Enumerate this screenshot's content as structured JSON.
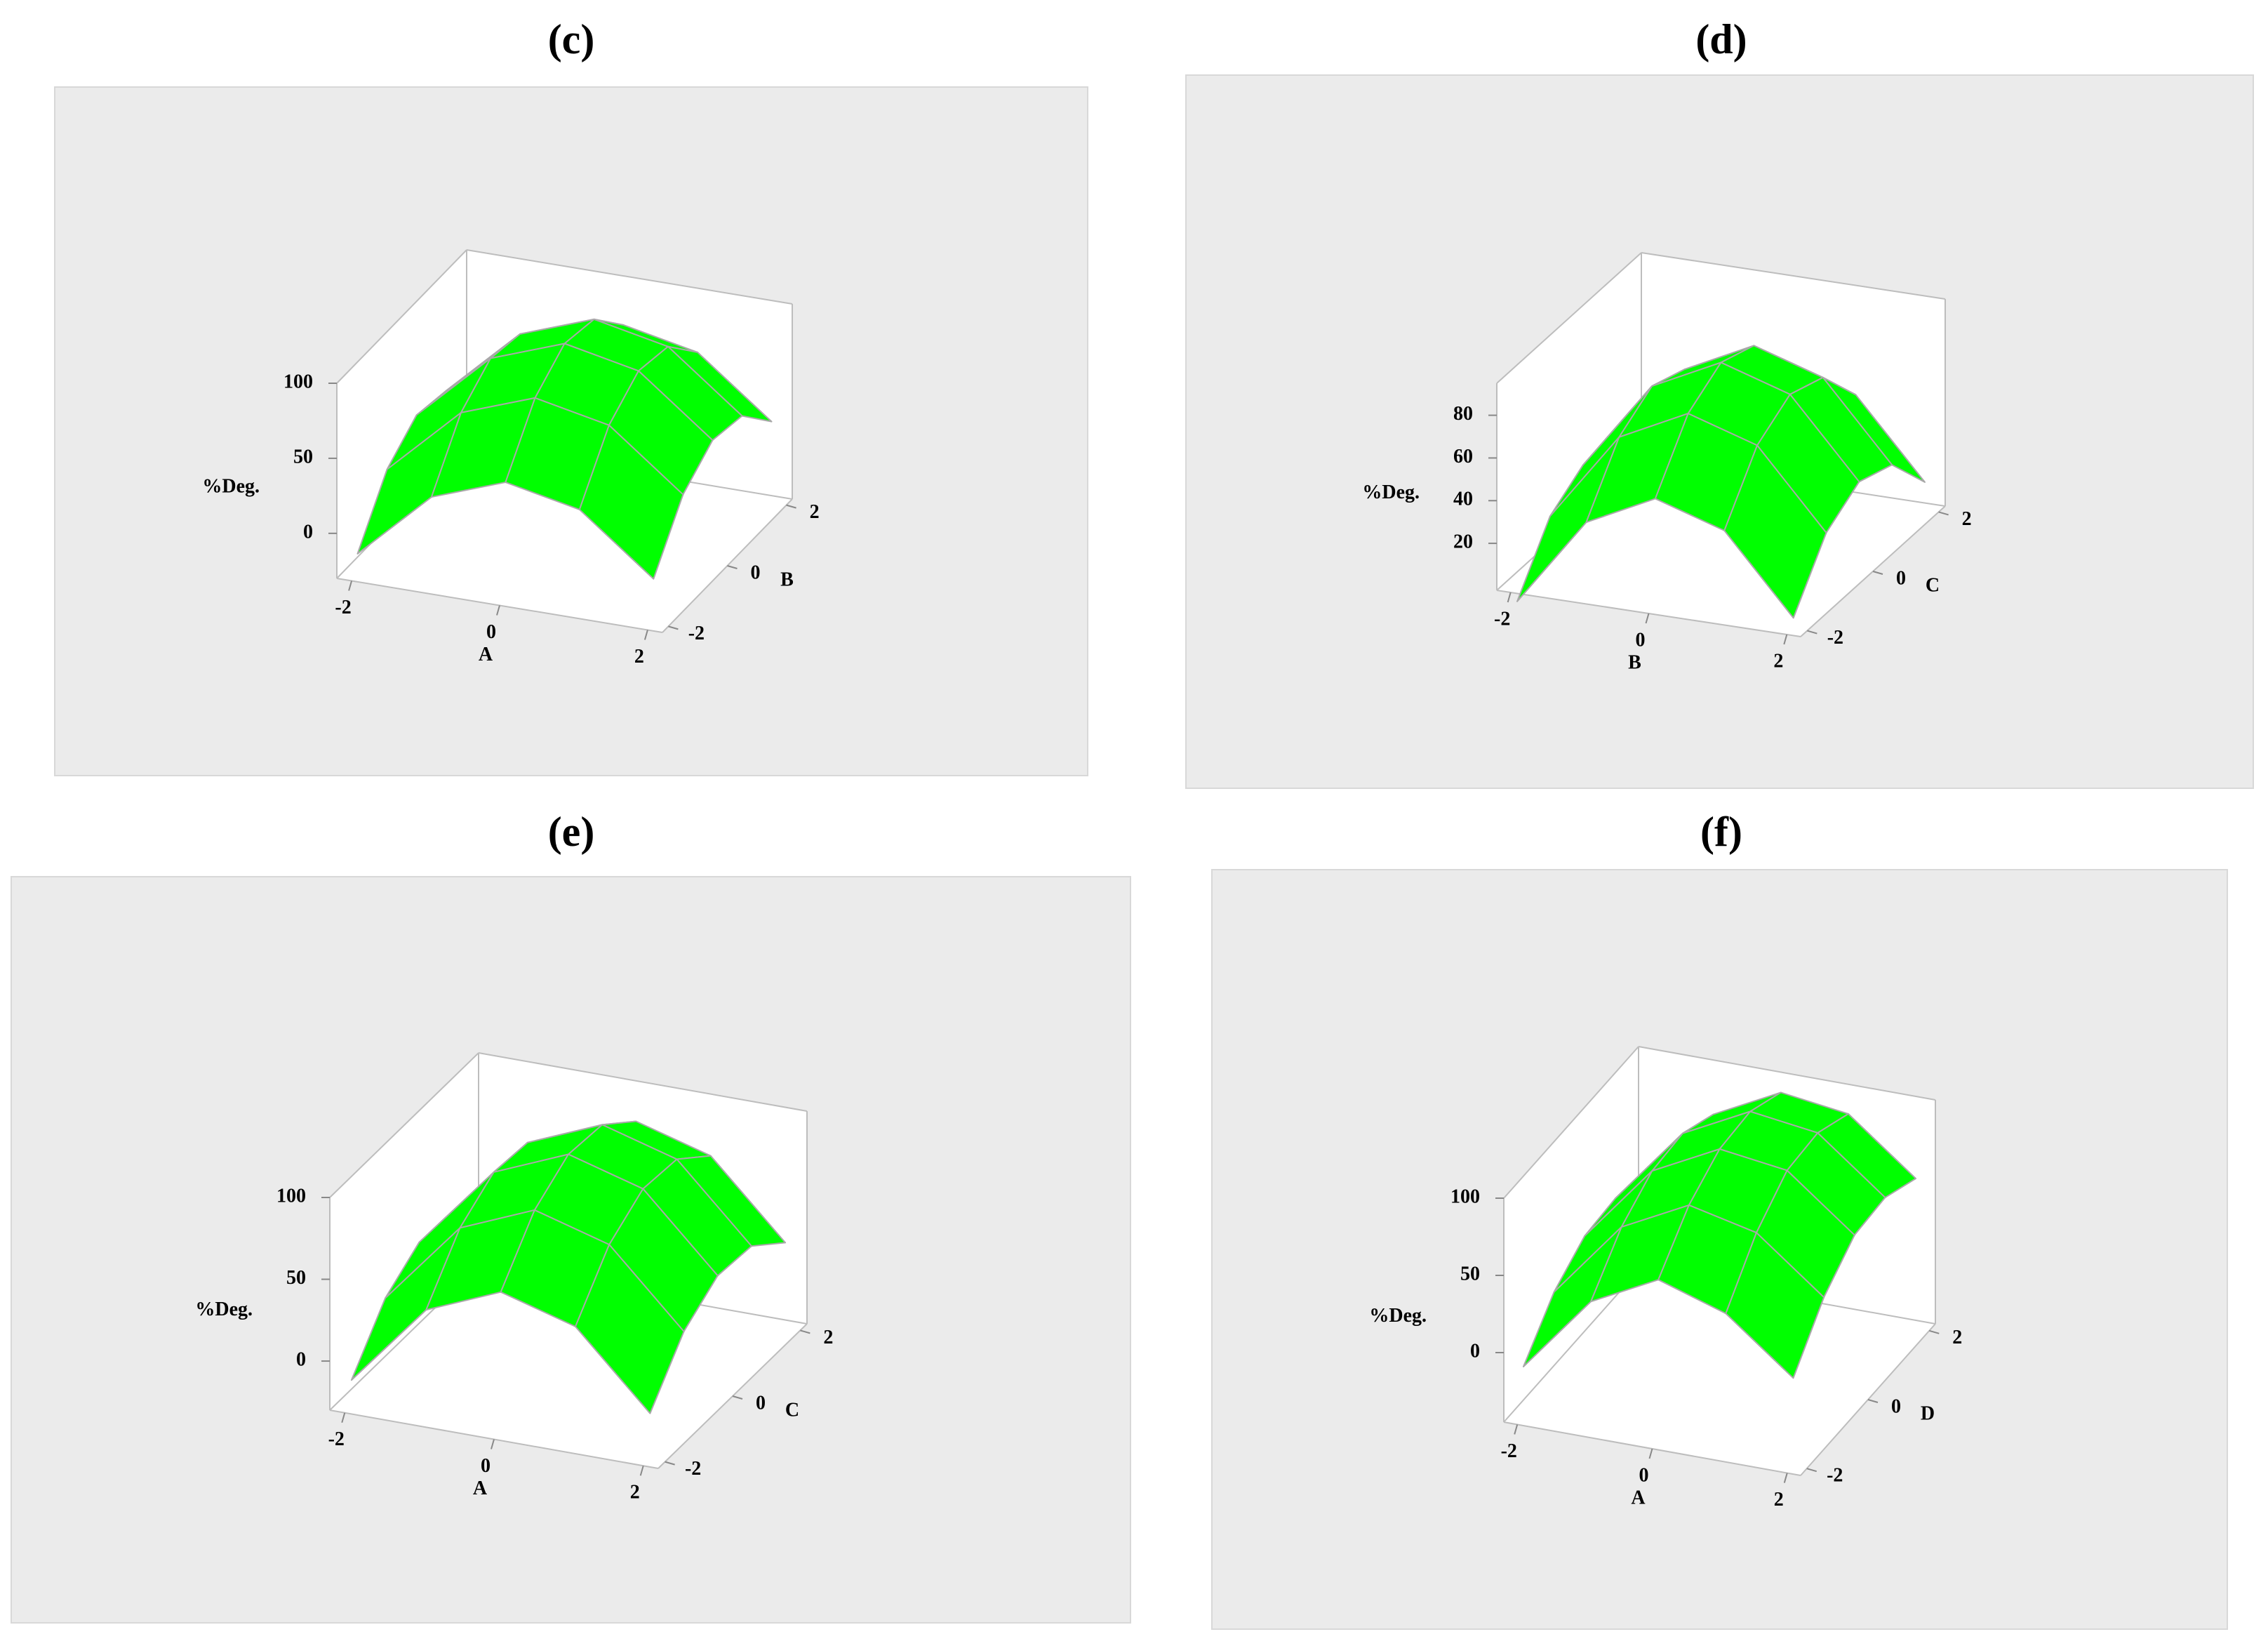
{
  "chart_data": [
    {
      "type": "surface",
      "title": "(c)",
      "x_label": "A",
      "y_label": "B",
      "z_label": "%Deg.",
      "color": "#00ff00",
      "x": [
        -2,
        -1,
        0,
        1,
        2
      ],
      "y": [
        -2,
        -1,
        0,
        1,
        2
      ],
      "z": [
        [
          -16,
          20,
          36,
          32,
          8
        ],
        [
          30,
          66,
          82,
          78,
          54
        ],
        [
          48,
          84,
          100,
          96,
          72
        ],
        [
          38,
          74,
          90,
          86,
          62
        ],
        [
          0,
          36,
          52,
          48,
          24
        ]
      ],
      "xlim": [
        -2.2,
        2.2
      ],
      "ylim": [
        -2.2,
        2.2
      ],
      "zlim": [
        -30,
        100
      ],
      "xticks": [
        -2,
        0,
        2
      ],
      "yticks": [
        -2,
        0,
        2
      ],
      "zticks": [
        0,
        50,
        100
      ]
    },
    {
      "type": "surface",
      "title": "(d)",
      "x_label": "B",
      "y_label": "C",
      "z_label": "%Deg.",
      "color": "#00ff00",
      "x": [
        -2,
        -1,
        0,
        1,
        2
      ],
      "y": [
        -2,
        -1,
        0,
        1,
        2
      ],
      "z": [
        [
          -9,
          17,
          27,
          21,
          -1
        ],
        [
          33,
          59,
          69,
          63,
          41
        ],
        [
          49,
          75,
          85,
          79,
          57
        ],
        [
          39,
          65,
          75,
          69,
          47
        ],
        [
          3,
          29,
          39,
          33,
          11
        ]
      ],
      "xlim": [
        -2.2,
        2.2
      ],
      "ylim": [
        -2.2,
        2.2
      ],
      "zlim": [
        -2,
        95
      ],
      "xticks": [
        -2,
        0,
        2
      ],
      "yticks": [
        -2,
        0,
        2
      ],
      "zticks": [
        20,
        40,
        60,
        80
      ]
    },
    {
      "type": "surface",
      "title": "(e)",
      "x_label": "A",
      "y_label": "C",
      "z_label": "%Deg.",
      "color": "#00ff00",
      "x": [
        -2,
        -1,
        0,
        1,
        2
      ],
      "y": [
        -2,
        -1,
        0,
        1,
        2
      ],
      "z": [
        [
          -14,
          16,
          30,
          28,
          10
        ],
        [
          37,
          67,
          81,
          79,
          61
        ],
        [
          56,
          86,
          100,
          98,
          80
        ],
        [
          43,
          73,
          87,
          85,
          67
        ],
        [
          -2,
          28,
          42,
          40,
          22
        ]
      ],
      "xlim": [
        -2.2,
        2.2
      ],
      "ylim": [
        -2.2,
        2.2
      ],
      "zlim": [
        -30,
        100
      ],
      "xticks": [
        -2,
        0,
        2
      ],
      "yticks": [
        -2,
        0,
        2
      ],
      "zticks": [
        0,
        50,
        100
      ]
    },
    {
      "type": "surface",
      "title": "(f)",
      "x_label": "A",
      "y_label": "D",
      "z_label": "%Deg.",
      "color": "#00ff00",
      "x": [
        -2,
        -1,
        0,
        1,
        2
      ],
      "y": [
        -2,
        -1,
        0,
        1,
        2
      ],
      "z": [
        [
          -12,
          14,
          28,
          30,
          20
        ],
        [
          38,
          64,
          78,
          80,
          70
        ],
        [
          60,
          86,
          100,
          102,
          92
        ],
        [
          46,
          76,
          94,
          96,
          86
        ],
        [
          12,
          42,
          60,
          62,
          52
        ]
      ],
      "xlim": [
        -2.2,
        2.2
      ],
      "ylim": [
        -2.2,
        2.2
      ],
      "zlim": [
        -45,
        100
      ],
      "xticks": [
        -2,
        0,
        2
      ],
      "yticks": [
        -2,
        0,
        2
      ],
      "zticks": [
        0,
        50,
        100
      ]
    }
  ]
}
